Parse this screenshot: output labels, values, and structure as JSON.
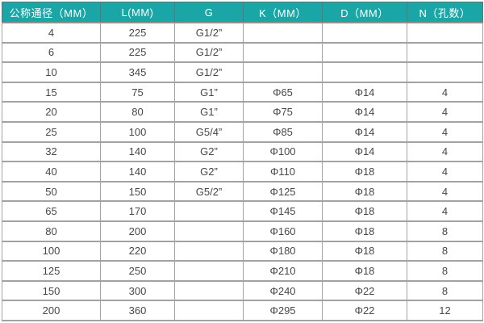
{
  "chart_data": {
    "type": "table",
    "title": "",
    "columns": [
      "公称通径（MM）",
      "L(MM)",
      "G",
      "K（MM）",
      "D（MM）",
      "N（孔数）"
    ],
    "rows": [
      [
        "4",
        "225",
        "G1/2”",
        "",
        "",
        ""
      ],
      [
        "6",
        "225",
        "G1/2”",
        "",
        "",
        ""
      ],
      [
        "10",
        "345",
        "G1/2”",
        "",
        "",
        ""
      ],
      [
        "15",
        "75",
        "G1”",
        "Φ65",
        "Φ14",
        "4"
      ],
      [
        "20",
        "80",
        "G1”",
        "Φ75",
        "Φ14",
        "4"
      ],
      [
        "25",
        "100",
        "G5/4”",
        "Φ85",
        "Φ14",
        "4"
      ],
      [
        "32",
        "140",
        "G2”",
        "Φ100",
        "Φ14",
        "4"
      ],
      [
        "40",
        "140",
        "G2”",
        "Φ110",
        "Φ18",
        "4"
      ],
      [
        "50",
        "150",
        "G5/2”",
        "Φ125",
        "Φ18",
        "4"
      ],
      [
        "65",
        "170",
        "",
        "Φ145",
        "Φ18",
        "4"
      ],
      [
        "80",
        "200",
        "",
        "Φ160",
        "Φ18",
        "8"
      ],
      [
        "100",
        "220",
        "",
        "Φ180",
        "Φ18",
        "8"
      ],
      [
        "125",
        "250",
        "",
        "Φ210",
        "Φ18",
        "8"
      ],
      [
        "150",
        "300",
        "",
        "Φ240",
        "Φ22",
        "8"
      ],
      [
        "200",
        "360",
        "",
        "Φ295",
        "Φ22",
        "12"
      ]
    ]
  },
  "colors": {
    "header_bg": "#1aa6a6",
    "header_text": "#ffffff",
    "cell_text": "#474747",
    "border": "#a2a2a2",
    "row_bg": "#ffffff"
  }
}
